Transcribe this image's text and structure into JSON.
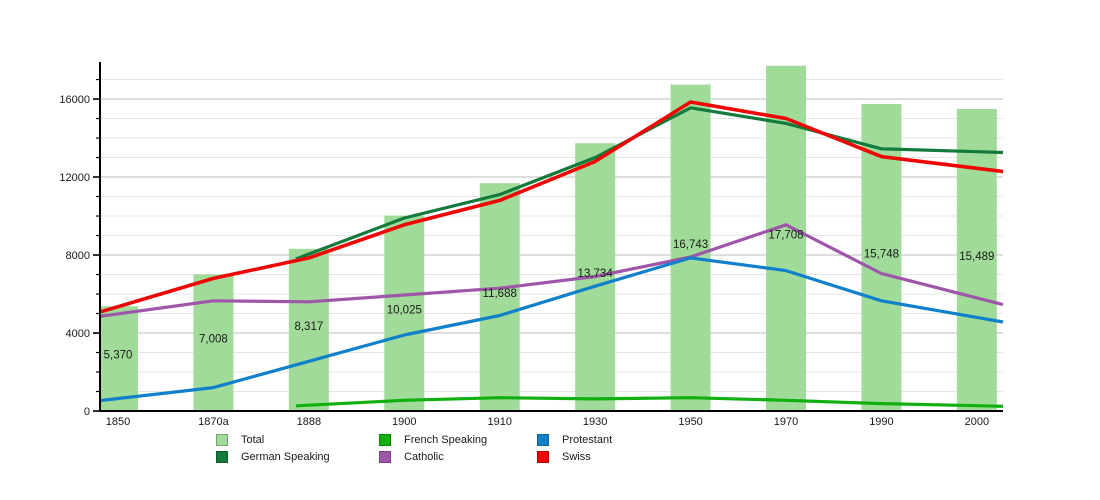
{
  "chart_data": {
    "type": "bar",
    "subtype": "combo-bar-and-lines",
    "title": "",
    "xlabel": "",
    "ylabel": "",
    "categories": [
      "1850",
      "1870a",
      "1888",
      "1900",
      "1910",
      "1930",
      "1950",
      "1970",
      "1990",
      "2000"
    ],
    "bar_series": {
      "name": "Total",
      "color": "#a0db99",
      "values": [
        5370,
        7008,
        8317,
        10025,
        11688,
        13734,
        16743,
        17708,
        15748,
        15489
      ],
      "labels": [
        "5,370",
        "7,008",
        "8,317",
        "10,025",
        "11,688",
        "13,734",
        "16,743",
        "17,708",
        "15,748",
        "15,489"
      ]
    },
    "series": [
      {
        "name": "German Speaking",
        "color": "#127a3a",
        "width": 3.2,
        "values": [
          null,
          null,
          8050,
          9900,
          11100,
          13000,
          15550,
          14750,
          13450,
          13300
        ]
      },
      {
        "name": "French Speaking",
        "color": "#10b010",
        "width": 3.2,
        "values": [
          null,
          null,
          300,
          550,
          680,
          620,
          680,
          550,
          380,
          270
        ]
      },
      {
        "name": "Catholic",
        "color": "#9e56a8",
        "width": 3.2,
        "values": [
          4980,
          5650,
          5600,
          5950,
          6300,
          6900,
          7900,
          9550,
          7050,
          5800
        ]
      },
      {
        "name": "Protestant",
        "color": "#1180ca",
        "width": 3.2,
        "values": [
          640,
          1200,
          2550,
          3900,
          4900,
          6400,
          7850,
          7200,
          5650,
          4800
        ]
      },
      {
        "name": "Swiss",
        "color": "#ef0505",
        "width": 3.6,
        "values": [
          5350,
          6800,
          7850,
          9550,
          10800,
          12800,
          15850,
          15000,
          13050,
          12450
        ]
      }
    ],
    "y_axis": {
      "tick_labels": [
        "0",
        "4000",
        "8000",
        "12000",
        "16000"
      ],
      "major_ticks": [
        0,
        4000,
        8000,
        12000,
        16000
      ],
      "minor_step": 1000,
      "min": 0,
      "max": 17900,
      "grid": "on"
    },
    "legend_position": "bottom"
  },
  "legend": {
    "items": [
      {
        "label": "Total",
        "color": "#a0db99"
      },
      {
        "label": "German Speaking",
        "color": "#127a3a"
      },
      {
        "label": "French Speaking",
        "color": "#10b010"
      },
      {
        "label": "Catholic",
        "color": "#9e56a8"
      },
      {
        "label": "Protestant",
        "color": "#1180ca"
      },
      {
        "label": "Swiss",
        "color": "#ef0505"
      }
    ]
  },
  "colors": {
    "background": "#ffffff",
    "axis": "#000000",
    "major_grid": "#bdbdbd",
    "minor_grid": "#e5e5e5",
    "text": "#1a1a1a"
  }
}
